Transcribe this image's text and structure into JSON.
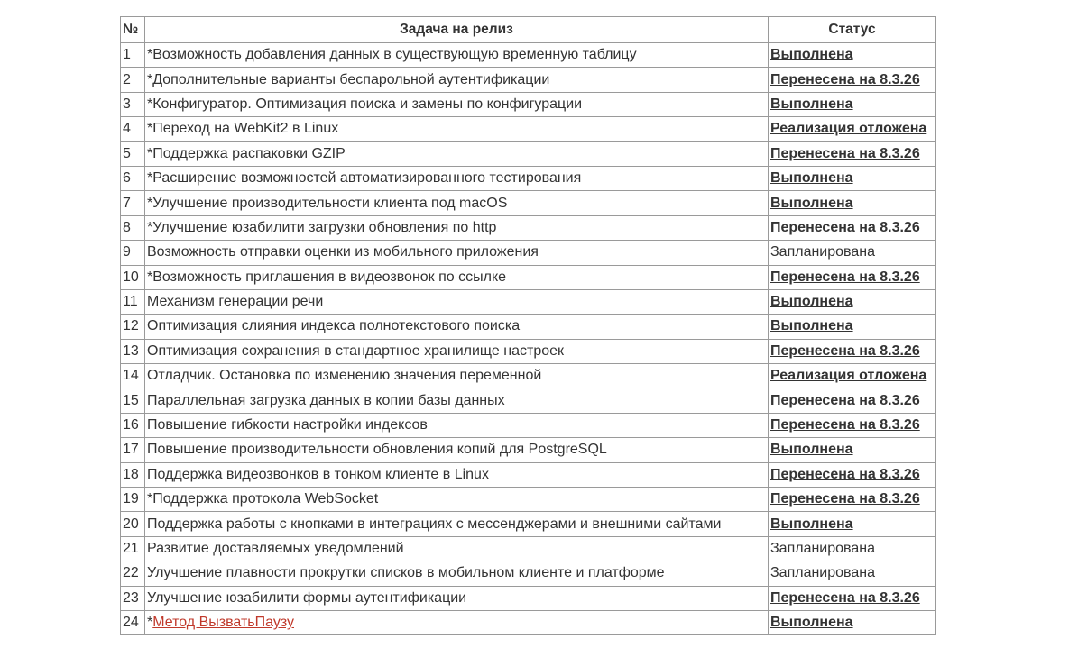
{
  "table": {
    "headers": {
      "num": "№",
      "task": "Задача на релиз",
      "status": "Статус"
    },
    "link_color": "#c0392b",
    "rows": [
      {
        "num": "1",
        "task": "*Возможность добавления данных в существующую временную таблицу",
        "status": "Выполнена",
        "status_link": true
      },
      {
        "num": "2",
        "task": "*Дополнительные варианты беспарольной аутентификации",
        "status": "Перенесена на 8.3.26",
        "status_link": true
      },
      {
        "num": "3",
        "task": "*Конфигуратор. Оптимизация поиска и замены по конфигурации",
        "status": "Выполнена",
        "status_link": true
      },
      {
        "num": "4",
        "task": "*Переход на WebKit2 в Linux",
        "status": "Реализация отложена",
        "status_link": true
      },
      {
        "num": "5",
        "task": "*Поддержка распаковки GZIP",
        "status": "Перенесена на 8.3.26",
        "status_link": true
      },
      {
        "num": "6",
        "task": "*Расширение возможностей автоматизированного тестирования",
        "status": "Выполнена",
        "status_link": true
      },
      {
        "num": "7",
        "task": "*Улучшение производительности клиента под macOS",
        "status": "Выполнена",
        "status_link": true
      },
      {
        "num": "8",
        "task": "*Улучшение юзабилити загрузки обновления по http",
        "status": "Перенесена на 8.3.26",
        "status_link": true
      },
      {
        "num": "9",
        "task": "Возможность отправки оценки из мобильного приложения",
        "status": "Запланирована",
        "status_link": false
      },
      {
        "num": "10",
        "task": "*Возможность приглашения в видеозвонок по ссылке",
        "status": "Перенесена на 8.3.26",
        "status_link": true
      },
      {
        "num": "11",
        "task": "Механизм генерации речи",
        "status": "Выполнена",
        "status_link": true
      },
      {
        "num": "12",
        "task": "Оптимизация слияния индекса полнотекстового поиска",
        "status": "Выполнена",
        "status_link": true
      },
      {
        "num": "13",
        "task": "Оптимизация сохранения в стандартное хранилище настроек",
        "status": "Перенесена на 8.3.26",
        "status_link": true
      },
      {
        "num": "14",
        "task": "Отладчик. Остановка по изменению значения переменной",
        "status": "Реализация отложена",
        "status_link": true
      },
      {
        "num": "15",
        "task": "Параллельная загрузка данных в копии базы данных",
        "status": "Перенесена на 8.3.26",
        "status_link": true
      },
      {
        "num": "16",
        "task": "Повышение гибкости настройки индексов",
        "status": "Перенесена на 8.3.26",
        "status_link": true
      },
      {
        "num": "17",
        "task": "Повышение производительности обновления копий для PostgreSQL",
        "status": "Выполнена",
        "status_link": true
      },
      {
        "num": "18",
        "task": "Поддержка видеозвонков в тонком клиенте в Linux",
        "status": "Перенесена на 8.3.26",
        "status_link": true
      },
      {
        "num": "19",
        "task": "*Поддержка протокола WebSocket",
        "status": "Перенесена на 8.3.26",
        "status_link": true
      },
      {
        "num": "20",
        "task": "Поддержка работы с кнопками в интеграциях с мессенджерами и внешними сайтами",
        "status": "Выполнена",
        "status_link": true
      },
      {
        "num": "21",
        "task": "Развитие доставляемых уведомлений",
        "status": "Запланирована",
        "status_link": false
      },
      {
        "num": "22",
        "task": "Улучшение плавности прокрутки списков в мобильном клиенте и платформе",
        "status": "Запланирована",
        "status_link": false
      },
      {
        "num": "23",
        "task": "Улучшение юзабилити формы аутентификации",
        "status": "Перенесена на 8.3.26",
        "status_link": true
      },
      {
        "num": "24",
        "task_prefix": "*",
        "task_link": "Метод ВызватьПаузу",
        "status": "Выполнена",
        "status_link": true
      }
    ]
  }
}
